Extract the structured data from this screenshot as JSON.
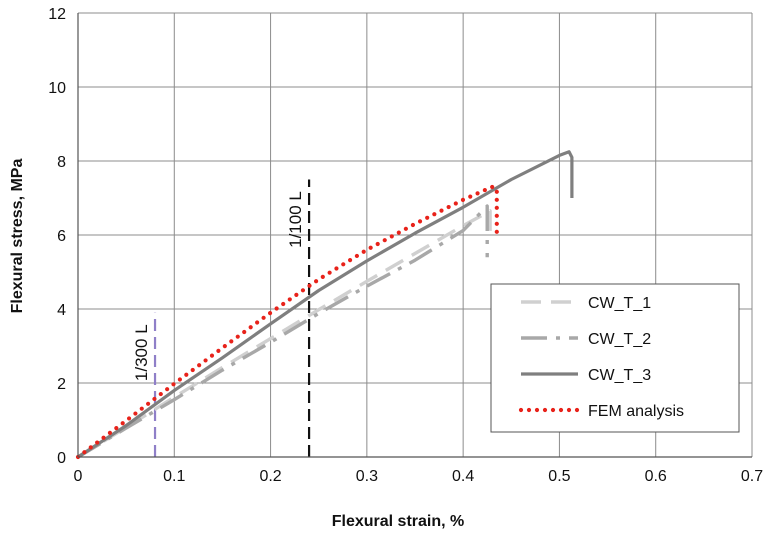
{
  "chart_data": {
    "type": "line",
    "xlabel": "Flexural strain, %",
    "ylabel": "Flexural stress, MPa",
    "xlim": [
      0,
      0.7
    ],
    "ylim": [
      0,
      12
    ],
    "x_ticks": [
      "0",
      "0.1",
      "0.2",
      "0.3",
      "0.4",
      "0.5",
      "0.6",
      "0.7"
    ],
    "y_ticks": [
      "0",
      "2",
      "4",
      "6",
      "8",
      "10",
      "12"
    ],
    "grid": true,
    "legend_position": "bottom-right",
    "series": [
      {
        "name": "CW_T_1",
        "color": "#d0d0d0",
        "style": "dashed",
        "points": [
          [
            0,
            0
          ],
          [
            0.05,
            0.8
          ],
          [
            0.1,
            1.62
          ],
          [
            0.15,
            2.42
          ],
          [
            0.2,
            3.2
          ],
          [
            0.25,
            3.98
          ],
          [
            0.3,
            4.75
          ],
          [
            0.35,
            5.5
          ],
          [
            0.4,
            6.25
          ],
          [
            0.428,
            6.65
          ],
          [
            0.428,
            6.0
          ]
        ]
      },
      {
        "name": "CW_T_2",
        "color": "#a8a8a8",
        "style": "dash-dot",
        "points": [
          [
            0,
            0
          ],
          [
            0.05,
            0.78
          ],
          [
            0.1,
            1.55
          ],
          [
            0.15,
            2.35
          ],
          [
            0.2,
            3.1
          ],
          [
            0.25,
            3.88
          ],
          [
            0.3,
            4.62
          ],
          [
            0.35,
            5.32
          ],
          [
            0.4,
            6.12
          ],
          [
            0.425,
            6.78
          ],
          [
            0.425,
            5.4
          ]
        ]
      },
      {
        "name": "CW_T_3",
        "color": "#7f7f7f",
        "style": "solid",
        "points": [
          [
            0,
            0
          ],
          [
            0.05,
            0.85
          ],
          [
            0.1,
            1.8
          ],
          [
            0.15,
            2.68
          ],
          [
            0.2,
            3.6
          ],
          [
            0.25,
            4.5
          ],
          [
            0.3,
            5.3
          ],
          [
            0.35,
            6.05
          ],
          [
            0.4,
            6.75
          ],
          [
            0.45,
            7.5
          ],
          [
            0.5,
            8.15
          ],
          [
            0.51,
            8.25
          ],
          [
            0.513,
            8.1
          ],
          [
            0.513,
            7.0
          ]
        ]
      },
      {
        "name": "FEM analysis",
        "color": "#e8221a",
        "style": "dotted",
        "points": [
          [
            0,
            0
          ],
          [
            0.05,
            0.98
          ],
          [
            0.1,
            1.98
          ],
          [
            0.15,
            2.95
          ],
          [
            0.2,
            3.9
          ],
          [
            0.25,
            4.8
          ],
          [
            0.3,
            5.6
          ],
          [
            0.35,
            6.3
          ],
          [
            0.4,
            6.95
          ],
          [
            0.43,
            7.3
          ],
          [
            0.435,
            7.25
          ],
          [
            0.435,
            6.0
          ]
        ]
      }
    ],
    "reference_lines": [
      {
        "label": "1/300 L",
        "x": 0.08,
        "y_top": 3.9,
        "color": "#8f7fc8"
      },
      {
        "label": "1/100 L",
        "x": 0.24,
        "y_top": 7.5,
        "color": "#111111"
      }
    ]
  }
}
